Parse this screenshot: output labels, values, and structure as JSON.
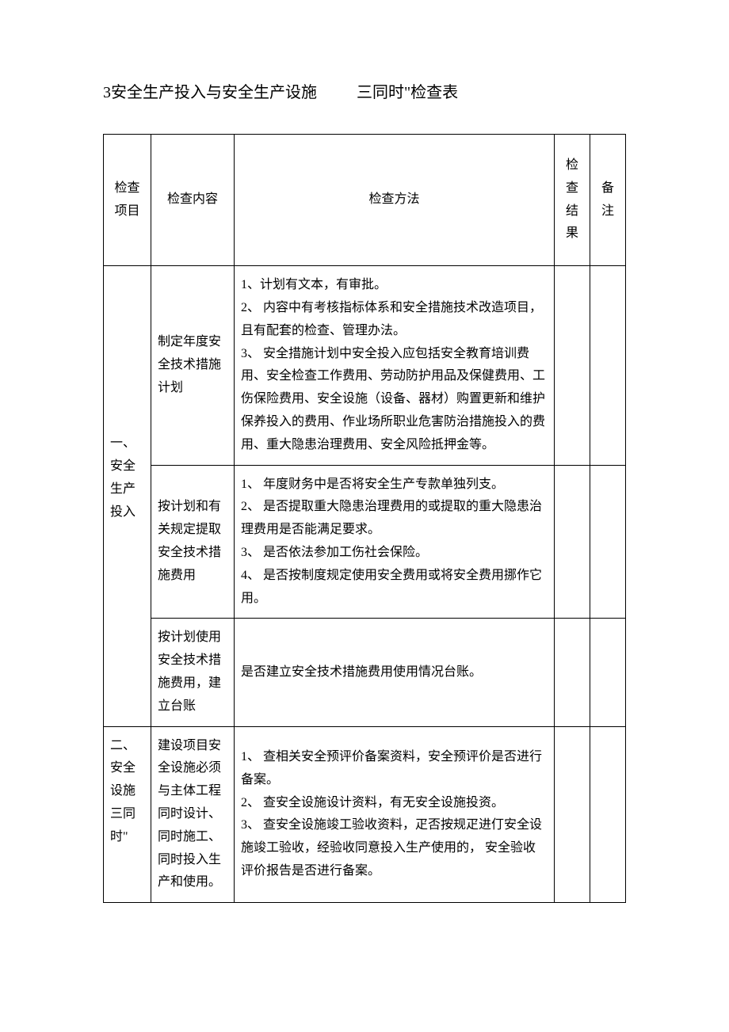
{
  "title": {
    "part1": "3安全生产投入与安全生产设施",
    "part2": "三同时\"检查表"
  },
  "headers": {
    "item": "检查项目",
    "content": "检查内容",
    "method": "检查方法",
    "result": "检 查结 果",
    "remark": "备注"
  },
  "section1": {
    "item": "一、安全生产投入",
    "rows": [
      {
        "content": "制定年度安全技术措施计划",
        "method": "1、计划有文本，有审批。\n2、 内容中有考核指标体系和安全措施技术改造项目，且有配套的检查、管理办法。\n3、 安全措施计划中安全投入应包括安全教育培训费用、安全检查工作费用、劳动防护用品及保健费用、工伤保险费用、安全设施（设备、器材）购置更新和维护保养投入的费用、作业场所职业危害防治措施投入的费用、重大隐患治理费用、安全风险抵押金等。"
      },
      {
        "content": "按计划和有关规定提取安全技术措施费用",
        "method": "1、 年度财务中是否将安全生产专款单独列支。\n2、 是否提取重大隐患治理费用的或提取的重大隐患治理费用是否能满足要求。\n3、 是否依法参加工伤社会保险。\n4、 是否按制度规定使用安全费用或将安全费用挪作它用。"
      },
      {
        "content": "按计划使用安全技术措施费用，建立台账",
        "method": "是否建立安全技术措施费用使用情况台账。"
      }
    ]
  },
  "section2": {
    "item": "二、安全设施三同时\"",
    "rows": [
      {
        "content": "建设项目安全设施必须与主体工程同时设计、同时施工、同时投入生产和使用。",
        "method": "1、 查相关安全预评价备案资料，安全预评价是否进行备案。\n2、 查安全设施设计资料，有无安全设施投资。\n3、 查安全设施竣工验收资料，疋否按规疋进仃安全设施竣工验收，经验收同意投入生产使用的， 安全验收评价报告是否进行备案。"
      }
    ]
  }
}
